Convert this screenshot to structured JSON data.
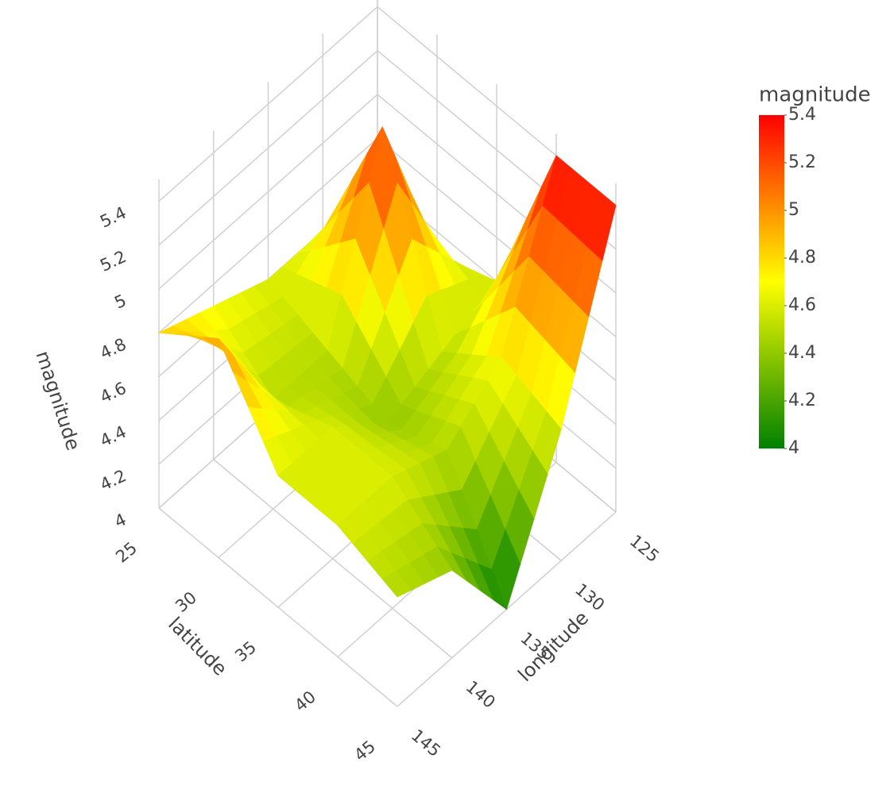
{
  "chart_data": {
    "type": "surface",
    "x_title": "latitude",
    "y_title": "longitude",
    "z_title": "magnitude",
    "x": [
      25,
      30,
      35,
      40,
      45
    ],
    "y": [
      125,
      130,
      135,
      140,
      145
    ],
    "z": [
      [
        4.5,
        4.6,
        4.6,
        4.7,
        4.8
      ],
      [
        4.5,
        5.3,
        4.5,
        4.5,
        5.0
      ],
      [
        4.6,
        4.5,
        4.4,
        4.6,
        4.6
      ],
      [
        5.4,
        4.7,
        4.5,
        4.6,
        4.6
      ],
      [
        5.4,
        4.6,
        4.0,
        4.4,
        4.5
      ]
    ],
    "xlim": [
      25,
      45
    ],
    "ylim": [
      125,
      145
    ],
    "zlim": [
      4,
      5.5
    ],
    "xticks": [
      25,
      30,
      35,
      40,
      45
    ],
    "yticks": [
      125,
      130,
      135,
      140,
      145
    ],
    "zticks": [
      4,
      4.2,
      4.4,
      4.6,
      4.8,
      5,
      5.2,
      5.4
    ],
    "colorscale": [
      "#008000",
      "#ffff00",
      "#ff0000"
    ],
    "colorbar": {
      "title": "magnitude",
      "cmin": 4,
      "cmax": 5.4,
      "ticks": [
        4,
        4.2,
        4.4,
        4.6,
        4.8,
        5,
        5.2,
        5.4
      ]
    },
    "grid": true
  }
}
